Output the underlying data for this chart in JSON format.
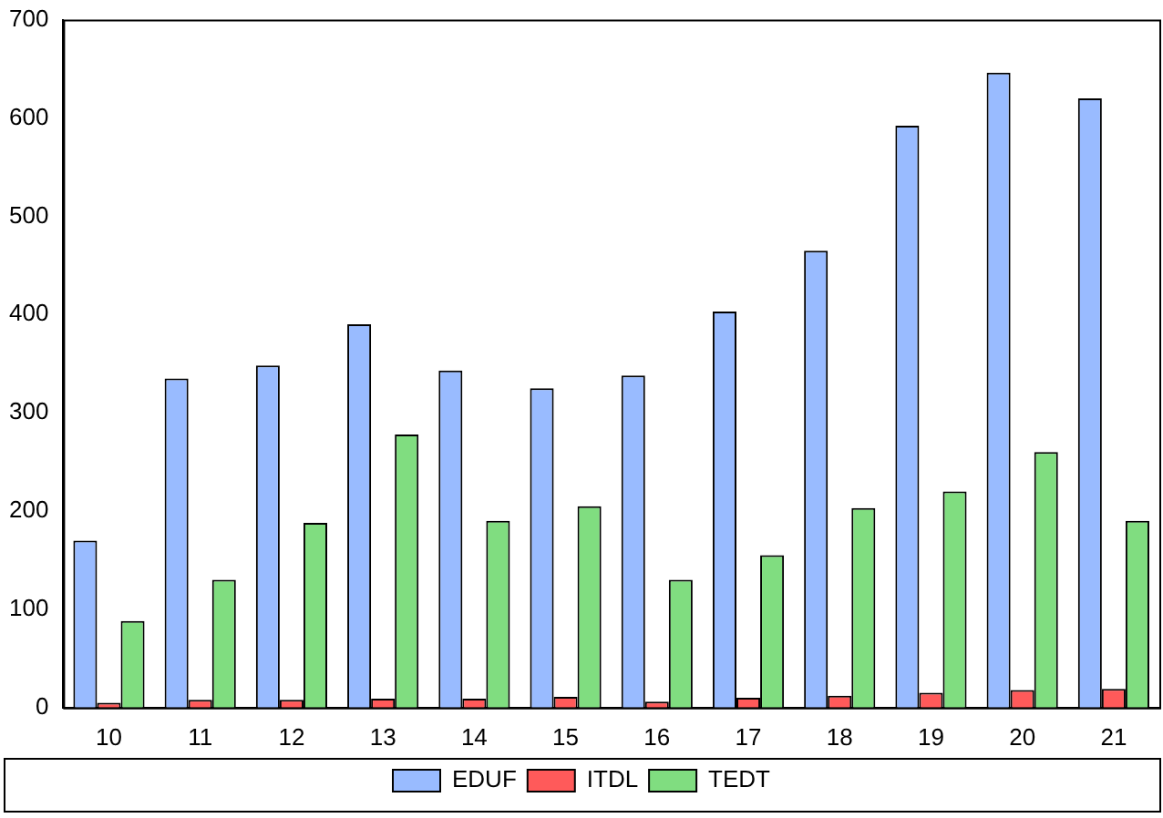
{
  "chart_data": {
    "type": "bar",
    "categories": [
      "10",
      "11",
      "12",
      "13",
      "14",
      "15",
      "16",
      "17",
      "18",
      "19",
      "20",
      "21"
    ],
    "series": [
      {
        "name": "EDUF",
        "color": "#99bbff",
        "values": [
          170,
          335,
          348,
          390,
          343,
          325,
          338,
          403,
          465,
          592,
          646,
          620
        ]
      },
      {
        "name": "ITDL",
        "color": "#ff5a5a",
        "values": [
          5,
          8,
          8,
          9,
          9,
          11,
          6,
          10,
          12,
          15,
          18,
          19
        ]
      },
      {
        "name": "TEDT",
        "color": "#80dd80",
        "values": [
          88,
          130,
          188,
          278,
          190,
          205,
          130,
          155,
          203,
          220,
          260,
          190
        ]
      }
    ],
    "ylim": [
      0,
      700
    ],
    "yticks": [
      0,
      100,
      200,
      300,
      400,
      500,
      600,
      700
    ],
    "grid": false,
    "legend": "bottom"
  }
}
